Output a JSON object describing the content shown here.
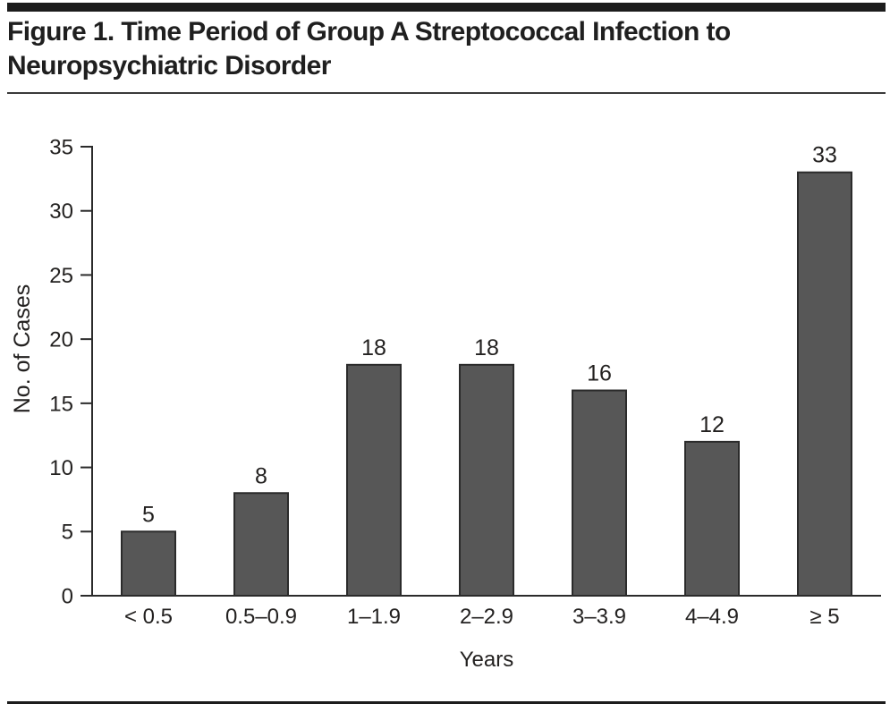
{
  "figure": {
    "title": "Figure 1. Time Period of Group A Streptococcal Infection to Neuropsychiatric Disorder"
  },
  "chart_data": {
    "type": "bar",
    "categories": [
      "< 0.5",
      "0.5–0.9",
      "1–1.9",
      "2–2.9",
      "3–3.9",
      "4–4.9",
      "≥ 5"
    ],
    "values": [
      5,
      8,
      18,
      18,
      16,
      12,
      33
    ],
    "bar_value_labels": [
      "5",
      "8",
      "18",
      "18",
      "16",
      "12",
      "33"
    ],
    "title": "Figure 1. Time Period of Group A Streptococcal Infection to Neuropsychiatric Disorder",
    "xlabel": "Years",
    "ylabel": "No. of Cases",
    "ylim": [
      0,
      35
    ],
    "ytick_step": 5,
    "yticks": [
      0,
      5,
      10,
      15,
      20,
      25,
      30,
      35
    ],
    "grid": false,
    "legend": null,
    "bar_color": "#575757",
    "bar_border_color": "#2b2b2b",
    "axis_color": "#2b2b2b",
    "text_color": "#232120",
    "rule_color": "#1c1c1c"
  }
}
